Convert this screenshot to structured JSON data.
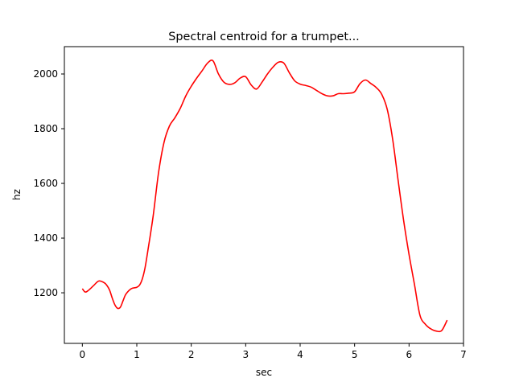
{
  "chart_data": {
    "type": "line",
    "title": "Spectral centroid for a trumpet...",
    "xlabel": "sec",
    "ylabel": "hz",
    "xlim": [
      -0.33,
      7.0
    ],
    "ylim": [
      1015,
      2100
    ],
    "xticks": [
      0,
      1,
      2,
      3,
      4,
      5,
      6,
      7
    ],
    "yticks": [
      1200,
      1400,
      1600,
      1800,
      2000
    ],
    "grid": false,
    "series": [
      {
        "color": "#ff0000",
        "x": [
          0.0,
          0.05,
          0.1,
          0.2,
          0.3,
          0.4,
          0.45,
          0.5,
          0.55,
          0.6,
          0.65,
          0.7,
          0.75,
          0.8,
          0.9,
          1.0,
          1.05,
          1.1,
          1.15,
          1.2,
          1.3,
          1.4,
          1.5,
          1.6,
          1.7,
          1.8,
          1.9,
          2.0,
          2.1,
          2.2,
          2.3,
          2.4,
          2.5,
          2.6,
          2.7,
          2.8,
          2.9,
          3.0,
          3.1,
          3.2,
          3.3,
          3.4,
          3.5,
          3.6,
          3.7,
          3.8,
          3.9,
          4.0,
          4.1,
          4.2,
          4.3,
          4.4,
          4.5,
          4.6,
          4.7,
          4.8,
          4.9,
          5.0,
          5.1,
          5.2,
          5.3,
          5.4,
          5.5,
          5.6,
          5.7,
          5.8,
          5.9,
          6.0,
          6.1,
          6.2,
          6.3,
          6.4,
          6.5,
          6.6,
          6.7
        ],
        "y": [
          1215,
          1203,
          1207,
          1225,
          1243,
          1237,
          1227,
          1210,
          1180,
          1155,
          1143,
          1148,
          1172,
          1195,
          1215,
          1220,
          1228,
          1250,
          1290,
          1350,
          1480,
          1640,
          1750,
          1810,
          1840,
          1875,
          1920,
          1955,
          1985,
          2012,
          2040,
          2048,
          2000,
          1970,
          1962,
          1968,
          1985,
          1990,
          1960,
          1945,
          1970,
          2000,
          2025,
          2043,
          2040,
          2005,
          1975,
          1963,
          1958,
          1952,
          1940,
          1928,
          1920,
          1920,
          1928,
          1928,
          1930,
          1935,
          1965,
          1978,
          1965,
          1950,
          1925,
          1870,
          1760,
          1610,
          1465,
          1340,
          1230,
          1118,
          1085,
          1068,
          1060,
          1062,
          1100
        ]
      }
    ]
  }
}
